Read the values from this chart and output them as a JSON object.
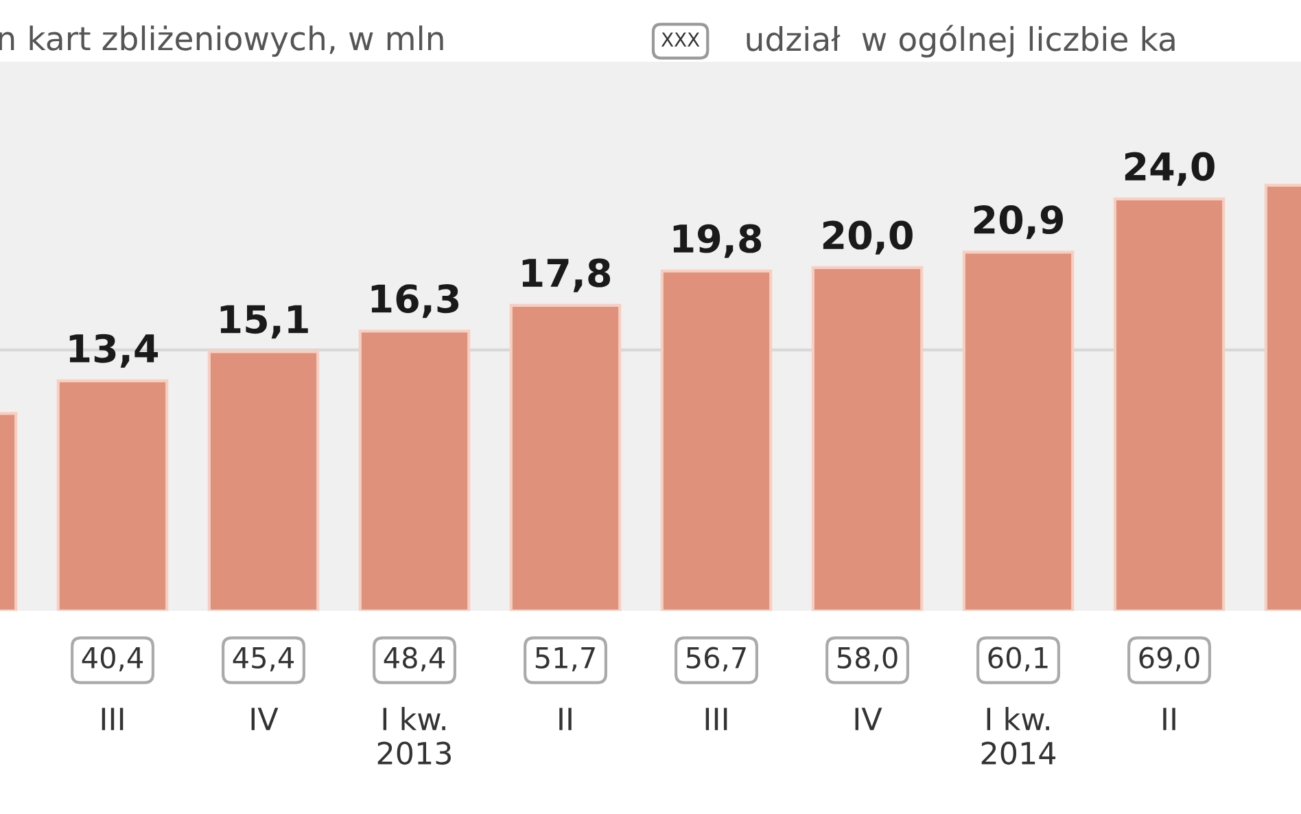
{
  "chart_data": {
    "type": "bar",
    "title": "n kart zbliżeniowych, w mln",
    "legend_title": "udział  w ogólnej liczbie ka",
    "annotations": [
      "XXX",
      "40,4",
      "45,4",
      "48,4",
      "51,7",
      "56,7",
      "58,0",
      "60,1",
      "69,0"
    ],
    "categories": [
      null,
      "III",
      "IV",
      "I kw.\n2013",
      "II",
      "III",
      "IV",
      "I kw.\n2014",
      "II",
      null
    ],
    "series": [
      {
        "color": "#e0917b",
        "values": [
          11.5,
          13.4,
          15.1,
          16.3,
          17.8,
          19.8,
          20.0,
          20.9,
          24.0,
          24.8
        ],
        "value_labels": [
          null,
          "13,4",
          "15,1",
          "16,3",
          "17,8",
          "19,8",
          "20,0",
          "20,9",
          "24,0",
          null
        ]
      }
    ],
    "ref_lines": [
      {
        "axis": "y",
        "value": 15.2,
        "color": "#d8d8d8"
      }
    ]
  }
}
